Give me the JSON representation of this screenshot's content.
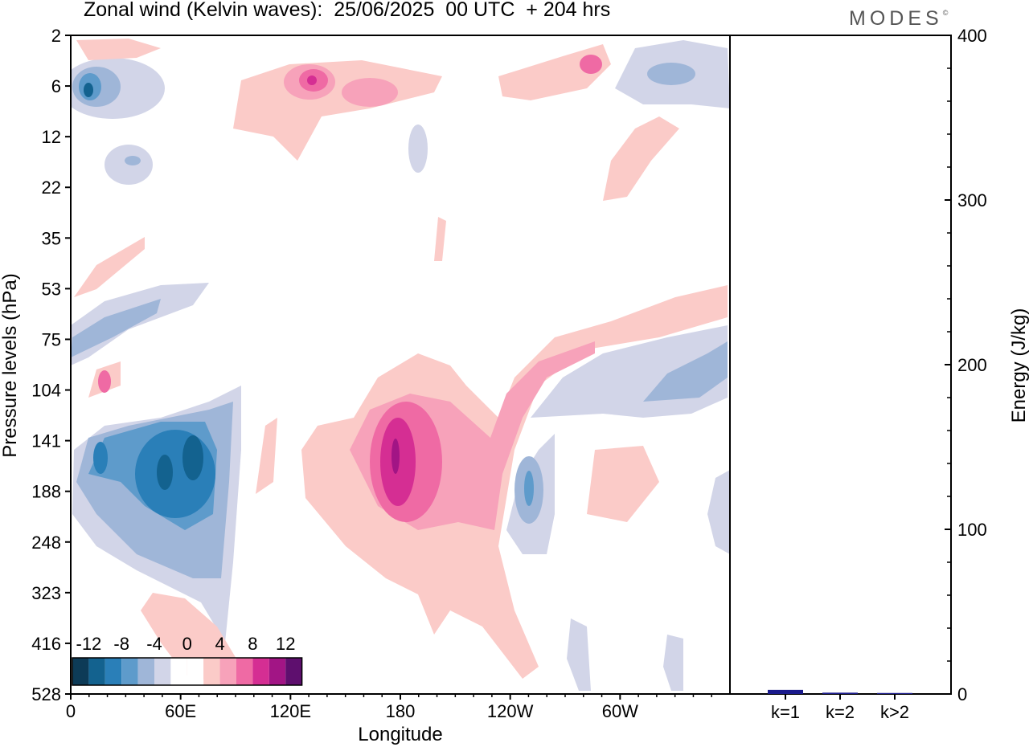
{
  "header": {
    "title": "Zonal wind (Kelvin waves):  25/06/2025  00 UTC  + 204 hrs",
    "brand": "MODES",
    "brand_mark": "©"
  },
  "chart_data": [
    {
      "type": "heatmap",
      "title": "Zonal wind (Kelvin waves):  25/06/2025  00 UTC  + 204 hrs",
      "xlabel": "Longitude",
      "ylabel": "Pressure levels (hPa)",
      "x_ticks": [
        "0",
        "60E",
        "120E",
        "180",
        "120W",
        "60W"
      ],
      "x_range_deg": [
        0,
        360
      ],
      "y_ticks": [
        "2",
        "6",
        "12",
        "22",
        "35",
        "53",
        "75",
        "104",
        "141",
        "188",
        "248",
        "323",
        "416",
        "528"
      ],
      "y_scale": "log",
      "grid": false,
      "colorbar": {
        "placement": "bottom-left",
        "tick_labels": [
          "-12",
          "-8",
          "-4",
          "0",
          "4",
          "8",
          "12"
        ],
        "colors": [
          "#0d3b57",
          "#13628f",
          "#2a7fb8",
          "#5e9bcb",
          "#9fb6d8",
          "#d2d5e8",
          "#ffffff",
          "#ffffff",
          "#fbcbc8",
          "#f7a2ba",
          "#ef6aa4",
          "#d52e93",
          "#a21585",
          "#5e0f6e"
        ]
      },
      "features": [
        {
          "sign": "negative",
          "lon_range": [
            5,
            30
          ],
          "level_hPa": 6,
          "peak": -12
        },
        {
          "sign": "negative",
          "lon_range": [
            0,
            100
          ],
          "level_hPa": 150,
          "peak": -12
        },
        {
          "sign": "positive",
          "lon_range": [
            150,
            220
          ],
          "level_hPa": 150,
          "peak": 12
        },
        {
          "sign": "positive",
          "lon_range": [
            110,
            240
          ],
          "level_hPa": 6,
          "peak": 10
        },
        {
          "sign": "negative",
          "lon_range": [
            230,
            260
          ],
          "level_hPa": 190,
          "peak": -8
        },
        {
          "sign": "negative",
          "lon_range": [
            300,
            360
          ],
          "level_hPa": 110,
          "peak": -7
        }
      ]
    },
    {
      "type": "bar",
      "categories": [
        "k=1",
        "k=2",
        "k>2"
      ],
      "values": [
        2.5,
        0.8,
        0.6
      ],
      "ylabel": "Energy (J/kg)",
      "ylim": [
        0,
        400
      ],
      "y_ticks": [
        "0",
        "100",
        "200",
        "300",
        "400"
      ],
      "bar_color": "#1a1a8c"
    }
  ]
}
